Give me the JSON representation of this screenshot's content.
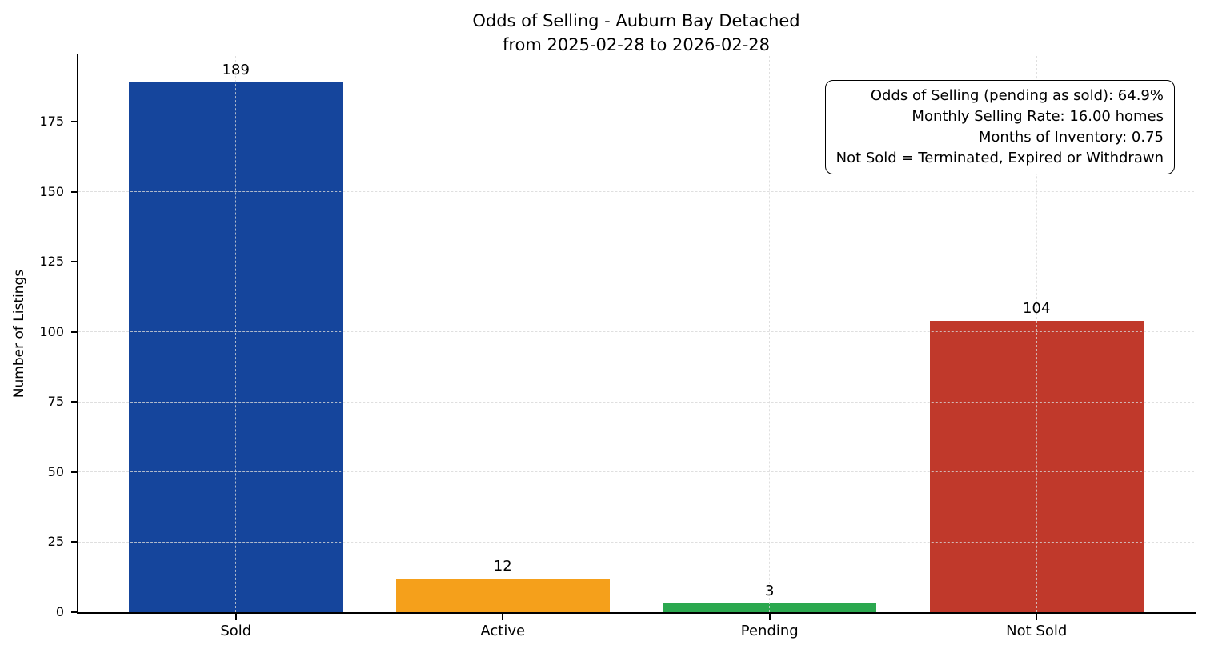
{
  "figure": {
    "title_line1": "Odds of Selling - Auburn Bay Detached",
    "title_line2": "from 2025-02-28 to 2026-02-28",
    "background_color": "#ffffff"
  },
  "chart_data": {
    "type": "bar",
    "title": "Odds of Selling - Auburn Bay Detached\nfrom 2025-02-28 to 2026-02-28",
    "categories": [
      "Sold",
      "Active",
      "Pending",
      "Not Sold"
    ],
    "values": [
      189,
      12,
      3,
      104
    ],
    "bar_colors": [
      "#15459c",
      "#f5a01b",
      "#2ba84f",
      "#c0392b"
    ],
    "xlabel": "",
    "ylabel": "Number of Listings",
    "ylim": [
      0,
      198.45
    ],
    "yticks": [
      0,
      25,
      50,
      75,
      100,
      125,
      150,
      175
    ],
    "grid": "dashed, horizontal and vertical, drawn over bars",
    "legend": "none",
    "spines": "left and bottom only, black",
    "annotation": {
      "position": "top-right",
      "border": "rounded black box on white",
      "lines": [
        "Odds of Selling (pending as sold): 64.9%",
        "Monthly Selling Rate: 16.00 homes",
        "Months of Inventory: 0.75",
        "Not Sold = Terminated, Expired or Withdrawn"
      ],
      "stats": {
        "odds_of_selling_pct": 64.9,
        "monthly_selling_rate_homes": 16.0,
        "months_of_inventory": 0.75
      }
    }
  }
}
